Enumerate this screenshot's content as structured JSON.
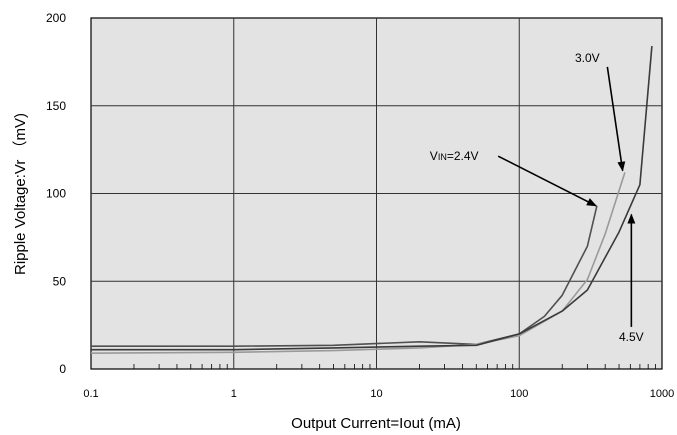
{
  "chart_data": {
    "type": "line",
    "xlabel": "Output Current=Iout (mA)",
    "ylabel": "Ripple Voltage:Vr （mV)",
    "x_scale": "log",
    "xlim": [
      0.1,
      1000
    ],
    "ylim": [
      0,
      200
    ],
    "x_ticks": [
      0.1,
      1,
      10,
      100,
      1000
    ],
    "x_tick_labels": [
      "0.1",
      "1",
      "10",
      "100",
      "1000"
    ],
    "y_ticks": [
      0,
      50,
      100,
      150,
      200
    ],
    "y_tick_labels": [
      "0",
      "50",
      "100",
      "150",
      "200"
    ],
    "grid": true,
    "colors": {
      "plot_background": "#e3e3e3",
      "grid": "#333333",
      "axis": "#000000"
    },
    "series": [
      {
        "color": "#505050",
        "x": [
          0.1,
          1,
          5,
          20,
          50,
          100,
          150,
          200,
          300,
          350
        ],
        "y": [
          13,
          13,
          13.5,
          15.5,
          14,
          20,
          30,
          42,
          70,
          93
        ]
      },
      {
        "color": "#9a9a9a",
        "x": [
          0.1,
          1,
          5,
          20,
          50,
          100,
          200,
          300,
          400,
          550
        ],
        "y": [
          9,
          9.5,
          10.5,
          12,
          14,
          19,
          33,
          51,
          77,
          112
        ]
      },
      {
        "color": "#3a3a3a",
        "x": [
          0.1,
          1,
          5,
          20,
          50,
          100,
          200,
          300,
          500,
          700,
          850
        ],
        "y": [
          11,
          11,
          12,
          13,
          13.5,
          20,
          33,
          45,
          78,
          105,
          184
        ]
      }
    ],
    "annotations": [
      {
        "text": "VIN=2.4V",
        "main": "V",
        "sub": "IN",
        "rest": "=2.4V",
        "x": 35,
        "y": 119,
        "arrow_to_x": 345,
        "arrow_to_y": 93
      },
      {
        "text": "3.0V",
        "main": "3.0V",
        "sub": "",
        "rest": "",
        "x": 300,
        "y": 175,
        "arrow_to_x": 530,
        "arrow_to_y": 113
      },
      {
        "text": "4.5V",
        "main": "4.5V",
        "sub": "",
        "rest": "",
        "x": 610,
        "y": 16,
        "arrow_to_x": 610,
        "arrow_to_y": 88
      }
    ]
  }
}
